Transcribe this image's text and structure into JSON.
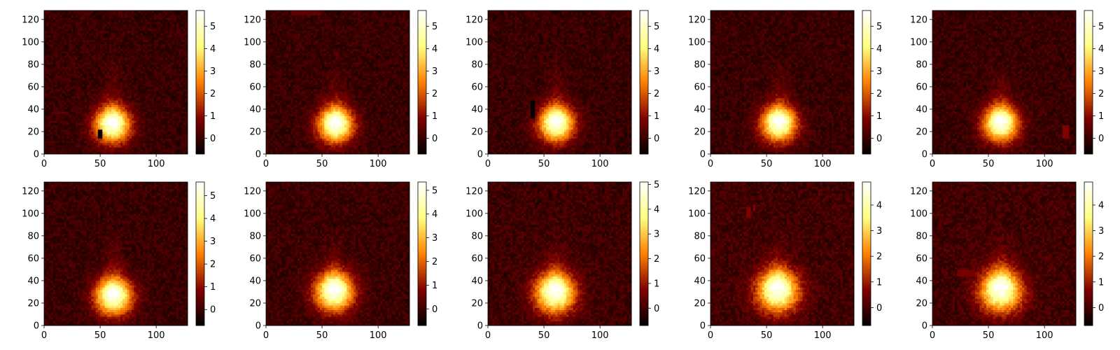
{
  "chart_data": [
    {
      "type": "heatmap",
      "title": "",
      "xlabel": "",
      "ylabel": "",
      "colormap": "afmhot",
      "xlim": [
        0,
        128
      ],
      "ylim": [
        0,
        128
      ],
      "x_ticks": [
        0,
        50,
        100
      ],
      "y_ticks": [
        0,
        20,
        40,
        60,
        80,
        100,
        120
      ],
      "peak_center": [
        61,
        26
      ],
      "peak_sigma": 11,
      "tail_top": 90,
      "colorbar": {
        "min": -0.7,
        "max": 5.7,
        "ticks": [
          0,
          1,
          2,
          3,
          4,
          5
        ]
      },
      "artifacts": [
        {
          "x": [
            48,
            51
          ],
          "y": [
            15,
            22
          ],
          "v": -0.6
        },
        {
          "x": [
            8,
            22
          ],
          "y": [
            36,
            38
          ],
          "v": 0.5
        }
      ]
    },
    {
      "type": "heatmap",
      "title": "",
      "xlabel": "",
      "ylabel": "",
      "colormap": "afmhot",
      "xlim": [
        0,
        128
      ],
      "ylim": [
        0,
        128
      ],
      "x_ticks": [
        0,
        50,
        100
      ],
      "y_ticks": [
        0,
        20,
        40,
        60,
        80,
        100,
        120
      ],
      "peak_center": [
        62,
        26
      ],
      "peak_sigma": 11,
      "tail_top": 90,
      "colorbar": {
        "min": -0.7,
        "max": 5.7,
        "ticks": [
          0,
          1,
          2,
          3,
          4,
          5
        ]
      },
      "artifacts": [
        {
          "x": [
            22,
            48
          ],
          "y": [
            124,
            127
          ],
          "v": 0.5
        }
      ]
    },
    {
      "type": "heatmap",
      "title": "",
      "xlabel": "",
      "ylabel": "",
      "colormap": "afmhot",
      "xlim": [
        0,
        128
      ],
      "ylim": [
        0,
        128
      ],
      "x_ticks": [
        0,
        50,
        100
      ],
      "y_ticks": [
        0,
        20,
        40,
        60,
        80,
        100,
        120
      ],
      "peak_center": [
        61,
        27
      ],
      "peak_sigma": 11,
      "tail_top": 90,
      "colorbar": {
        "min": -0.7,
        "max": 5.7,
        "ticks": [
          0,
          1,
          2,
          3,
          4,
          5
        ]
      },
      "artifacts": [
        {
          "x": [
            38,
            41
          ],
          "y": [
            33,
            48
          ],
          "v": -0.6
        }
      ]
    },
    {
      "type": "heatmap",
      "title": "",
      "xlabel": "",
      "ylabel": "",
      "colormap": "afmhot",
      "xlim": [
        0,
        128
      ],
      "ylim": [
        0,
        128
      ],
      "x_ticks": [
        0,
        50,
        100
      ],
      "y_ticks": [
        0,
        20,
        40,
        60,
        80,
        100,
        120
      ],
      "peak_center": [
        61,
        27
      ],
      "peak_sigma": 11,
      "tail_top": 90,
      "colorbar": {
        "min": -0.7,
        "max": 5.7,
        "ticks": [
          0,
          1,
          2,
          3,
          4,
          5
        ]
      },
      "artifacts": [
        {
          "x": [
            28,
            42
          ],
          "y": [
            66,
            68
          ],
          "v": 0.4
        }
      ]
    },
    {
      "type": "heatmap",
      "title": "",
      "xlabel": "",
      "ylabel": "",
      "colormap": "afmhot",
      "xlim": [
        0,
        128
      ],
      "ylim": [
        0,
        128
      ],
      "x_ticks": [
        0,
        50,
        100
      ],
      "y_ticks": [
        0,
        20,
        40,
        60,
        80,
        100,
        120
      ],
      "peak_center": [
        61,
        27
      ],
      "peak_sigma": 11,
      "tail_top": 90,
      "colorbar": {
        "min": -0.7,
        "max": 5.7,
        "ticks": [
          0,
          1,
          2,
          3,
          4,
          5
        ]
      },
      "artifacts": [
        {
          "x": [
            116,
            122
          ],
          "y": [
            15,
            25
          ],
          "v": 0.9
        }
      ]
    },
    {
      "type": "heatmap",
      "title": "",
      "xlabel": "",
      "ylabel": "",
      "colormap": "afmhot",
      "xlim": [
        0,
        128
      ],
      "ylim": [
        0,
        128
      ],
      "x_ticks": [
        0,
        50,
        100
      ],
      "y_ticks": [
        0,
        20,
        40,
        60,
        80,
        100,
        120
      ],
      "peak_center": [
        62,
        26
      ],
      "peak_sigma": 11.5,
      "tail_top": 90,
      "colorbar": {
        "min": -0.7,
        "max": 5.6,
        "ticks": [
          0,
          1,
          2,
          3,
          4,
          5
        ]
      },
      "artifacts": []
    },
    {
      "type": "heatmap",
      "title": "",
      "xlabel": "",
      "ylabel": "",
      "colormap": "afmhot",
      "xlim": [
        0,
        128
      ],
      "ylim": [
        0,
        128
      ],
      "x_ticks": [
        0,
        50,
        100
      ],
      "y_ticks": [
        0,
        20,
        40,
        60,
        80,
        100,
        120
      ],
      "peak_center": [
        61,
        30
      ],
      "peak_sigma": 12,
      "tail_top": 90,
      "colorbar": {
        "min": -0.7,
        "max": 5.35,
        "ticks": [
          0,
          1,
          2,
          3,
          4,
          5
        ]
      },
      "artifacts": []
    },
    {
      "type": "heatmap",
      "title": "",
      "xlabel": "",
      "ylabel": "",
      "colormap": "afmhot",
      "xlim": [
        0,
        128
      ],
      "ylim": [
        0,
        128
      ],
      "x_ticks": [
        0,
        50,
        100
      ],
      "y_ticks": [
        0,
        20,
        40,
        60,
        80,
        100,
        120
      ],
      "peak_center": [
        60,
        29
      ],
      "peak_sigma": 12.5,
      "tail_top": 90,
      "colorbar": {
        "min": -0.7,
        "max": 5.1,
        "ticks": [
          0,
          1,
          2,
          3,
          4,
          5
        ]
      },
      "artifacts": []
    },
    {
      "type": "heatmap",
      "title": "",
      "xlabel": "",
      "ylabel": "",
      "colormap": "afmhot",
      "xlim": [
        0,
        128
      ],
      "ylim": [
        0,
        128
      ],
      "x_ticks": [
        0,
        50,
        100
      ],
      "y_ticks": [
        0,
        20,
        40,
        60,
        80,
        100,
        120
      ],
      "peak_center": [
        60,
        31
      ],
      "peak_sigma": 13,
      "tail_top": 90,
      "colorbar": {
        "min": -0.7,
        "max": 4.9,
        "ticks": [
          0,
          1,
          2,
          3,
          4
        ]
      },
      "artifacts": [
        {
          "x": [
            33,
            36
          ],
          "y": [
            96,
            106
          ],
          "v": 0.7
        },
        {
          "x": [
            38,
            40
          ],
          "y": [
            102,
            108
          ],
          "v": 0.7
        }
      ]
    },
    {
      "type": "heatmap",
      "title": "",
      "xlabel": "",
      "ylabel": "",
      "colormap": "afmhot",
      "xlim": [
        0,
        128
      ],
      "ylim": [
        0,
        128
      ],
      "x_ticks": [
        0,
        50,
        100
      ],
      "y_ticks": [
        0,
        20,
        40,
        60,
        80,
        100,
        120
      ],
      "peak_center": [
        61,
        31
      ],
      "peak_sigma": 13,
      "tail_top": 90,
      "colorbar": {
        "min": -0.7,
        "max": 4.9,
        "ticks": [
          0,
          1,
          2,
          3,
          4
        ]
      },
      "artifacts": [
        {
          "x": [
            22,
            38
          ],
          "y": [
            45,
            49
          ],
          "v": 0.6
        }
      ]
    }
  ]
}
